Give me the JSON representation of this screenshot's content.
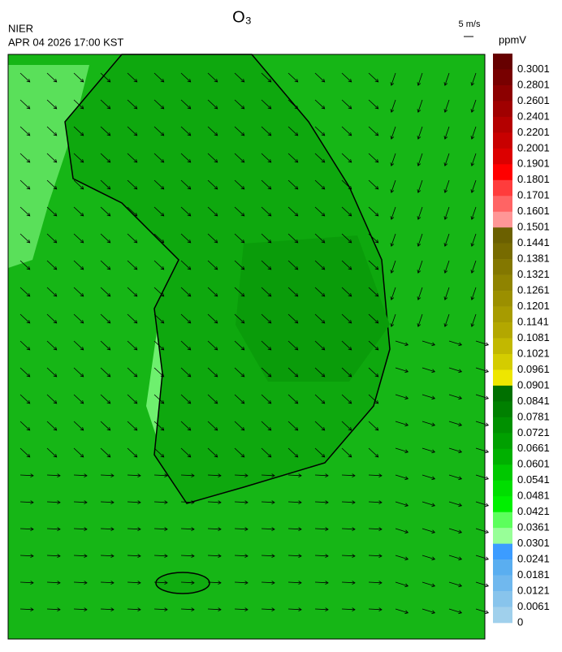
{
  "header": {
    "title": "O₃",
    "agency": "NIER",
    "datetime": "APR 04 2026 17:00 KST",
    "wind_scale": "5 m/s"
  },
  "legend": {
    "unit": "ppmV",
    "labels": [
      "0.3001",
      "0.2801",
      "0.2601",
      "0.2401",
      "0.2201",
      "0.2001",
      "0.1901",
      "0.1801",
      "0.1701",
      "0.1601",
      "0.1501",
      "0.1441",
      "0.1381",
      "0.1321",
      "0.1261",
      "0.1201",
      "0.1141",
      "0.1081",
      "0.1021",
      "0.0961",
      "0.0901",
      "0.0841",
      "0.0781",
      "0.0721",
      "0.0661",
      "0.0601",
      "0.0541",
      "0.0481",
      "0.0421",
      "0.0361",
      "0.0301",
      "0.0241",
      "0.0181",
      "0.0121",
      "0.0061",
      "0"
    ],
    "colors": [
      "#660000",
      "#780000",
      "#8c0000",
      "#a00000",
      "#b40000",
      "#c80000",
      "#dc0000",
      "#ff0000",
      "#ff3c3c",
      "#ff6464",
      "#ff9696",
      "#6b6000",
      "#776b00",
      "#837700",
      "#8f8300",
      "#9b8f00",
      "#a79b00",
      "#b3a700",
      "#c2b800",
      "#d4cc00",
      "#eee600",
      "#007000",
      "#008000",
      "#009000",
      "#00a000",
      "#00b000",
      "#00c800",
      "#00de00",
      "#00f000",
      "#5cff5c",
      "#98ff98",
      "#3c9cff",
      "#5aaef0",
      "#70b8ee",
      "#88c4ec",
      "#a0d0ec"
    ]
  }
}
